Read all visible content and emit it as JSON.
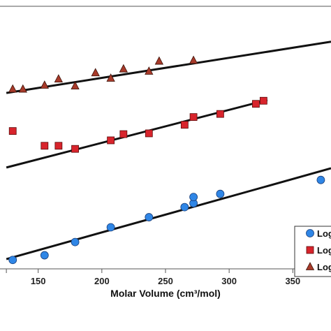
{
  "chart_data": {
    "type": "scatter",
    "xlabel": "Molar Volume (cm³/mol)",
    "ylabel": "",
    "title": "",
    "xlim": [
      120,
      380
    ],
    "xticks": [
      150,
      200,
      250,
      300,
      350
    ],
    "tick_labels": [
      "150",
      "200",
      "250",
      "300",
      "350"
    ],
    "grid": false,
    "legend_position": "bottom-right",
    "colors": {
      "circle": "#2f86e6",
      "square": "#d8242c",
      "triangle": "#a83a2a",
      "line": "#111111"
    },
    "series": [
      {
        "legend_label": "Log",
        "marker": "circle",
        "x": [
          130,
          155,
          179,
          207,
          237,
          265,
          272,
          272,
          293,
          372
        ],
        "y": [
          0.7,
          1.3,
          3.0,
          4.9,
          6.2,
          7.5,
          8.0,
          8.8,
          9.2,
          11.0
        ],
        "fit": {
          "x": [
            125,
            380
          ],
          "y": [
            0.8,
            12.5
          ]
        }
      },
      {
        "legend_label": "Log",
        "marker": "square",
        "x": [
          130,
          155,
          166,
          179,
          207,
          217,
          237,
          265,
          272,
          293,
          321,
          327
        ],
        "y": [
          17.3,
          15.4,
          15.4,
          15.0,
          16.1,
          16.9,
          17.0,
          18.1,
          19.1,
          19.5,
          20.8,
          21.2
        ],
        "fit": {
          "x": [
            125,
            330
          ],
          "y": [
            12.6,
            21.3
          ]
        }
      },
      {
        "legend_label": "Log",
        "marker": "triangle",
        "x": [
          130,
          138,
          155,
          166,
          179,
          195,
          207,
          217,
          237,
          245,
          272
        ],
        "y": [
          22.7,
          22.7,
          23.2,
          24.0,
          23.1,
          24.8,
          24.1,
          25.3,
          25.0,
          26.3,
          26.4
        ],
        "fit": {
          "x": [
            125,
            380
          ],
          "y": [
            22.2,
            28.8
          ]
        }
      }
    ]
  }
}
